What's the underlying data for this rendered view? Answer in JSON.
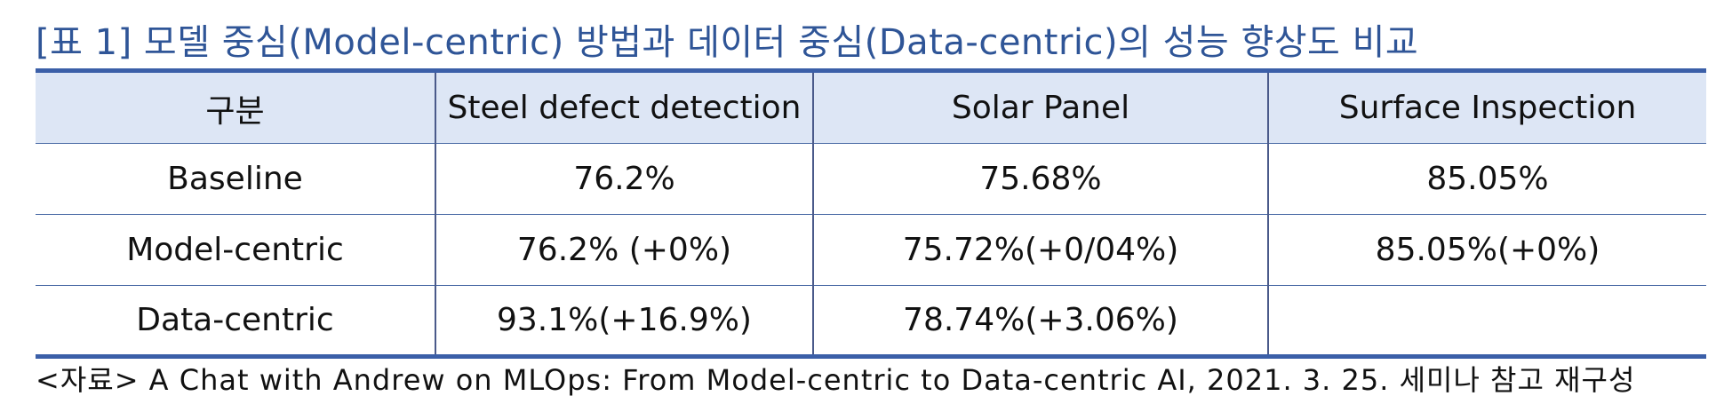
{
  "caption": "[표 1] 모델 중심(Model-centric) 방법과 데이터 중심(Data-centric)의 성능 향상도 비교",
  "table": {
    "headers": [
      "구분",
      "Steel defect detection",
      "Solar Panel",
      "Surface Inspection"
    ],
    "rows": [
      [
        "Baseline",
        "76.2%",
        "75.68%",
        "85.05%"
      ],
      [
        "Model-centric",
        "76.2% (+0%)",
        "75.72%(+0/04%)",
        "85.05%(+0%)"
      ],
      [
        "Data-centric",
        "93.1%(+16.9%)",
        "78.74%(+3.06%)",
        ""
      ]
    ]
  },
  "source": "<자료> A Chat with Andrew on MLOps: From Model-centric to Data-centric AI, 2021. 3. 25. 세미나 참고 재구성",
  "colors": {
    "caption_text": "#2f5597",
    "header_bg": "#dde6f5",
    "rule": "#3b5fa8"
  }
}
